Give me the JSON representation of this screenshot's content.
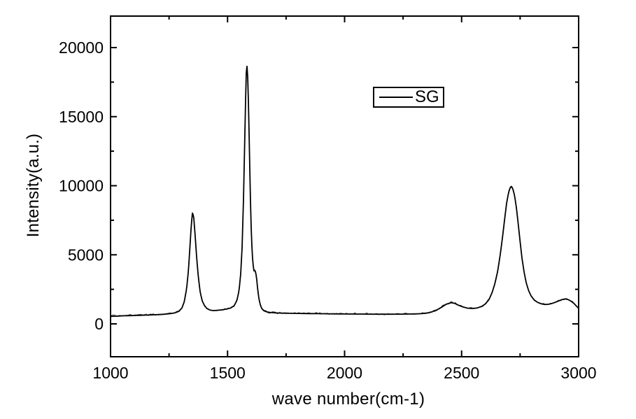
{
  "page": {
    "background": "#ffffff"
  },
  "chart_data": {
    "type": "line",
    "title": "",
    "xlabel": "wave number(cm-1)",
    "ylabel": "Intensity(a.u.)",
    "x_range": [
      1000,
      3000
    ],
    "y_range": [
      -2380,
      22280
    ],
    "x_major_ticks": [
      1000,
      1500,
      2000,
      2500,
      3000
    ],
    "x_minor_ticks": [
      1250,
      1750,
      2250,
      2750
    ],
    "y_major_ticks": [
      0,
      5000,
      10000,
      15000,
      20000
    ],
    "y_minor_ticks": [
      2500,
      7500,
      12500,
      17500
    ],
    "grid": false,
    "axis_color": "#000000",
    "legend": {
      "position": "inside-top-center",
      "entries": [
        {
          "label": "SG",
          "color": "#000000",
          "type": "line"
        }
      ]
    },
    "series": [
      {
        "name": "SG",
        "color": "#000000",
        "points": [
          [
            1000,
            540
          ],
          [
            1025,
            560
          ],
          [
            1050,
            580
          ],
          [
            1080,
            595
          ],
          [
            1110,
            610
          ],
          [
            1140,
            628
          ],
          [
            1170,
            648
          ],
          [
            1200,
            668
          ],
          [
            1230,
            700
          ],
          [
            1255,
            740
          ],
          [
            1275,
            800
          ],
          [
            1292,
            905
          ],
          [
            1305,
            1150
          ],
          [
            1315,
            1600
          ],
          [
            1325,
            2550
          ],
          [
            1333,
            3900
          ],
          [
            1340,
            5800
          ],
          [
            1345,
            7150
          ],
          [
            1350,
            8050
          ],
          [
            1355,
            7800
          ],
          [
            1361,
            6500
          ],
          [
            1368,
            4800
          ],
          [
            1375,
            3400
          ],
          [
            1383,
            2300
          ],
          [
            1392,
            1650
          ],
          [
            1402,
            1300
          ],
          [
            1412,
            1110
          ],
          [
            1425,
            1000
          ],
          [
            1440,
            960
          ],
          [
            1460,
            985
          ],
          [
            1480,
            1025
          ],
          [
            1500,
            1085
          ],
          [
            1515,
            1165
          ],
          [
            1528,
            1310
          ],
          [
            1540,
            1700
          ],
          [
            1549,
            2400
          ],
          [
            1556,
            3600
          ],
          [
            1562,
            5500
          ],
          [
            1568,
            9000
          ],
          [
            1573,
            13000
          ],
          [
            1577,
            16200
          ],
          [
            1580,
            18200
          ],
          [
            1583,
            18650
          ],
          [
            1586,
            17900
          ],
          [
            1590,
            15500
          ],
          [
            1594,
            12000
          ],
          [
            1598,
            8800
          ],
          [
            1602,
            6300
          ],
          [
            1606,
            4900
          ],
          [
            1610,
            4150
          ],
          [
            1613,
            3820
          ],
          [
            1616,
            3870
          ],
          [
            1620,
            3760
          ],
          [
            1624,
            3320
          ],
          [
            1628,
            2620
          ],
          [
            1633,
            1920
          ],
          [
            1639,
            1420
          ],
          [
            1646,
            1110
          ],
          [
            1655,
            950
          ],
          [
            1668,
            865
          ],
          [
            1685,
            820
          ],
          [
            1710,
            790
          ],
          [
            1750,
            770
          ],
          [
            1800,
            755
          ],
          [
            1850,
            745
          ],
          [
            1900,
            735
          ],
          [
            1950,
            725
          ],
          [
            2000,
            715
          ],
          [
            2050,
            710
          ],
          [
            2100,
            705
          ],
          [
            2150,
            700
          ],
          [
            2200,
            700
          ],
          [
            2250,
            706
          ],
          [
            2300,
            718
          ],
          [
            2330,
            742
          ],
          [
            2360,
            805
          ],
          [
            2390,
            960
          ],
          [
            2415,
            1210
          ],
          [
            2435,
            1430
          ],
          [
            2455,
            1530
          ],
          [
            2470,
            1490
          ],
          [
            2485,
            1360
          ],
          [
            2505,
            1230
          ],
          [
            2525,
            1140
          ],
          [
            2545,
            1115
          ],
          [
            2565,
            1145
          ],
          [
            2585,
            1255
          ],
          [
            2602,
            1450
          ],
          [
            2617,
            1760
          ],
          [
            2630,
            2250
          ],
          [
            2642,
            2900
          ],
          [
            2654,
            3800
          ],
          [
            2665,
            5000
          ],
          [
            2675,
            6300
          ],
          [
            2684,
            7600
          ],
          [
            2692,
            8700
          ],
          [
            2700,
            9450
          ],
          [
            2706,
            9800
          ],
          [
            2712,
            9950
          ],
          [
            2718,
            9820
          ],
          [
            2726,
            9320
          ],
          [
            2734,
            8420
          ],
          [
            2742,
            7220
          ],
          [
            2750,
            5950
          ],
          [
            2758,
            4750
          ],
          [
            2767,
            3750
          ],
          [
            2776,
            2980
          ],
          [
            2786,
            2420
          ],
          [
            2797,
            2020
          ],
          [
            2810,
            1730
          ],
          [
            2825,
            1555
          ],
          [
            2840,
            1455
          ],
          [
            2855,
            1405
          ],
          [
            2870,
            1415
          ],
          [
            2885,
            1470
          ],
          [
            2900,
            1560
          ],
          [
            2915,
            1665
          ],
          [
            2930,
            1765
          ],
          [
            2943,
            1805
          ],
          [
            2955,
            1760
          ],
          [
            2967,
            1650
          ],
          [
            2980,
            1480
          ],
          [
            2990,
            1300
          ],
          [
            3000,
            1120
          ]
        ]
      }
    ]
  }
}
